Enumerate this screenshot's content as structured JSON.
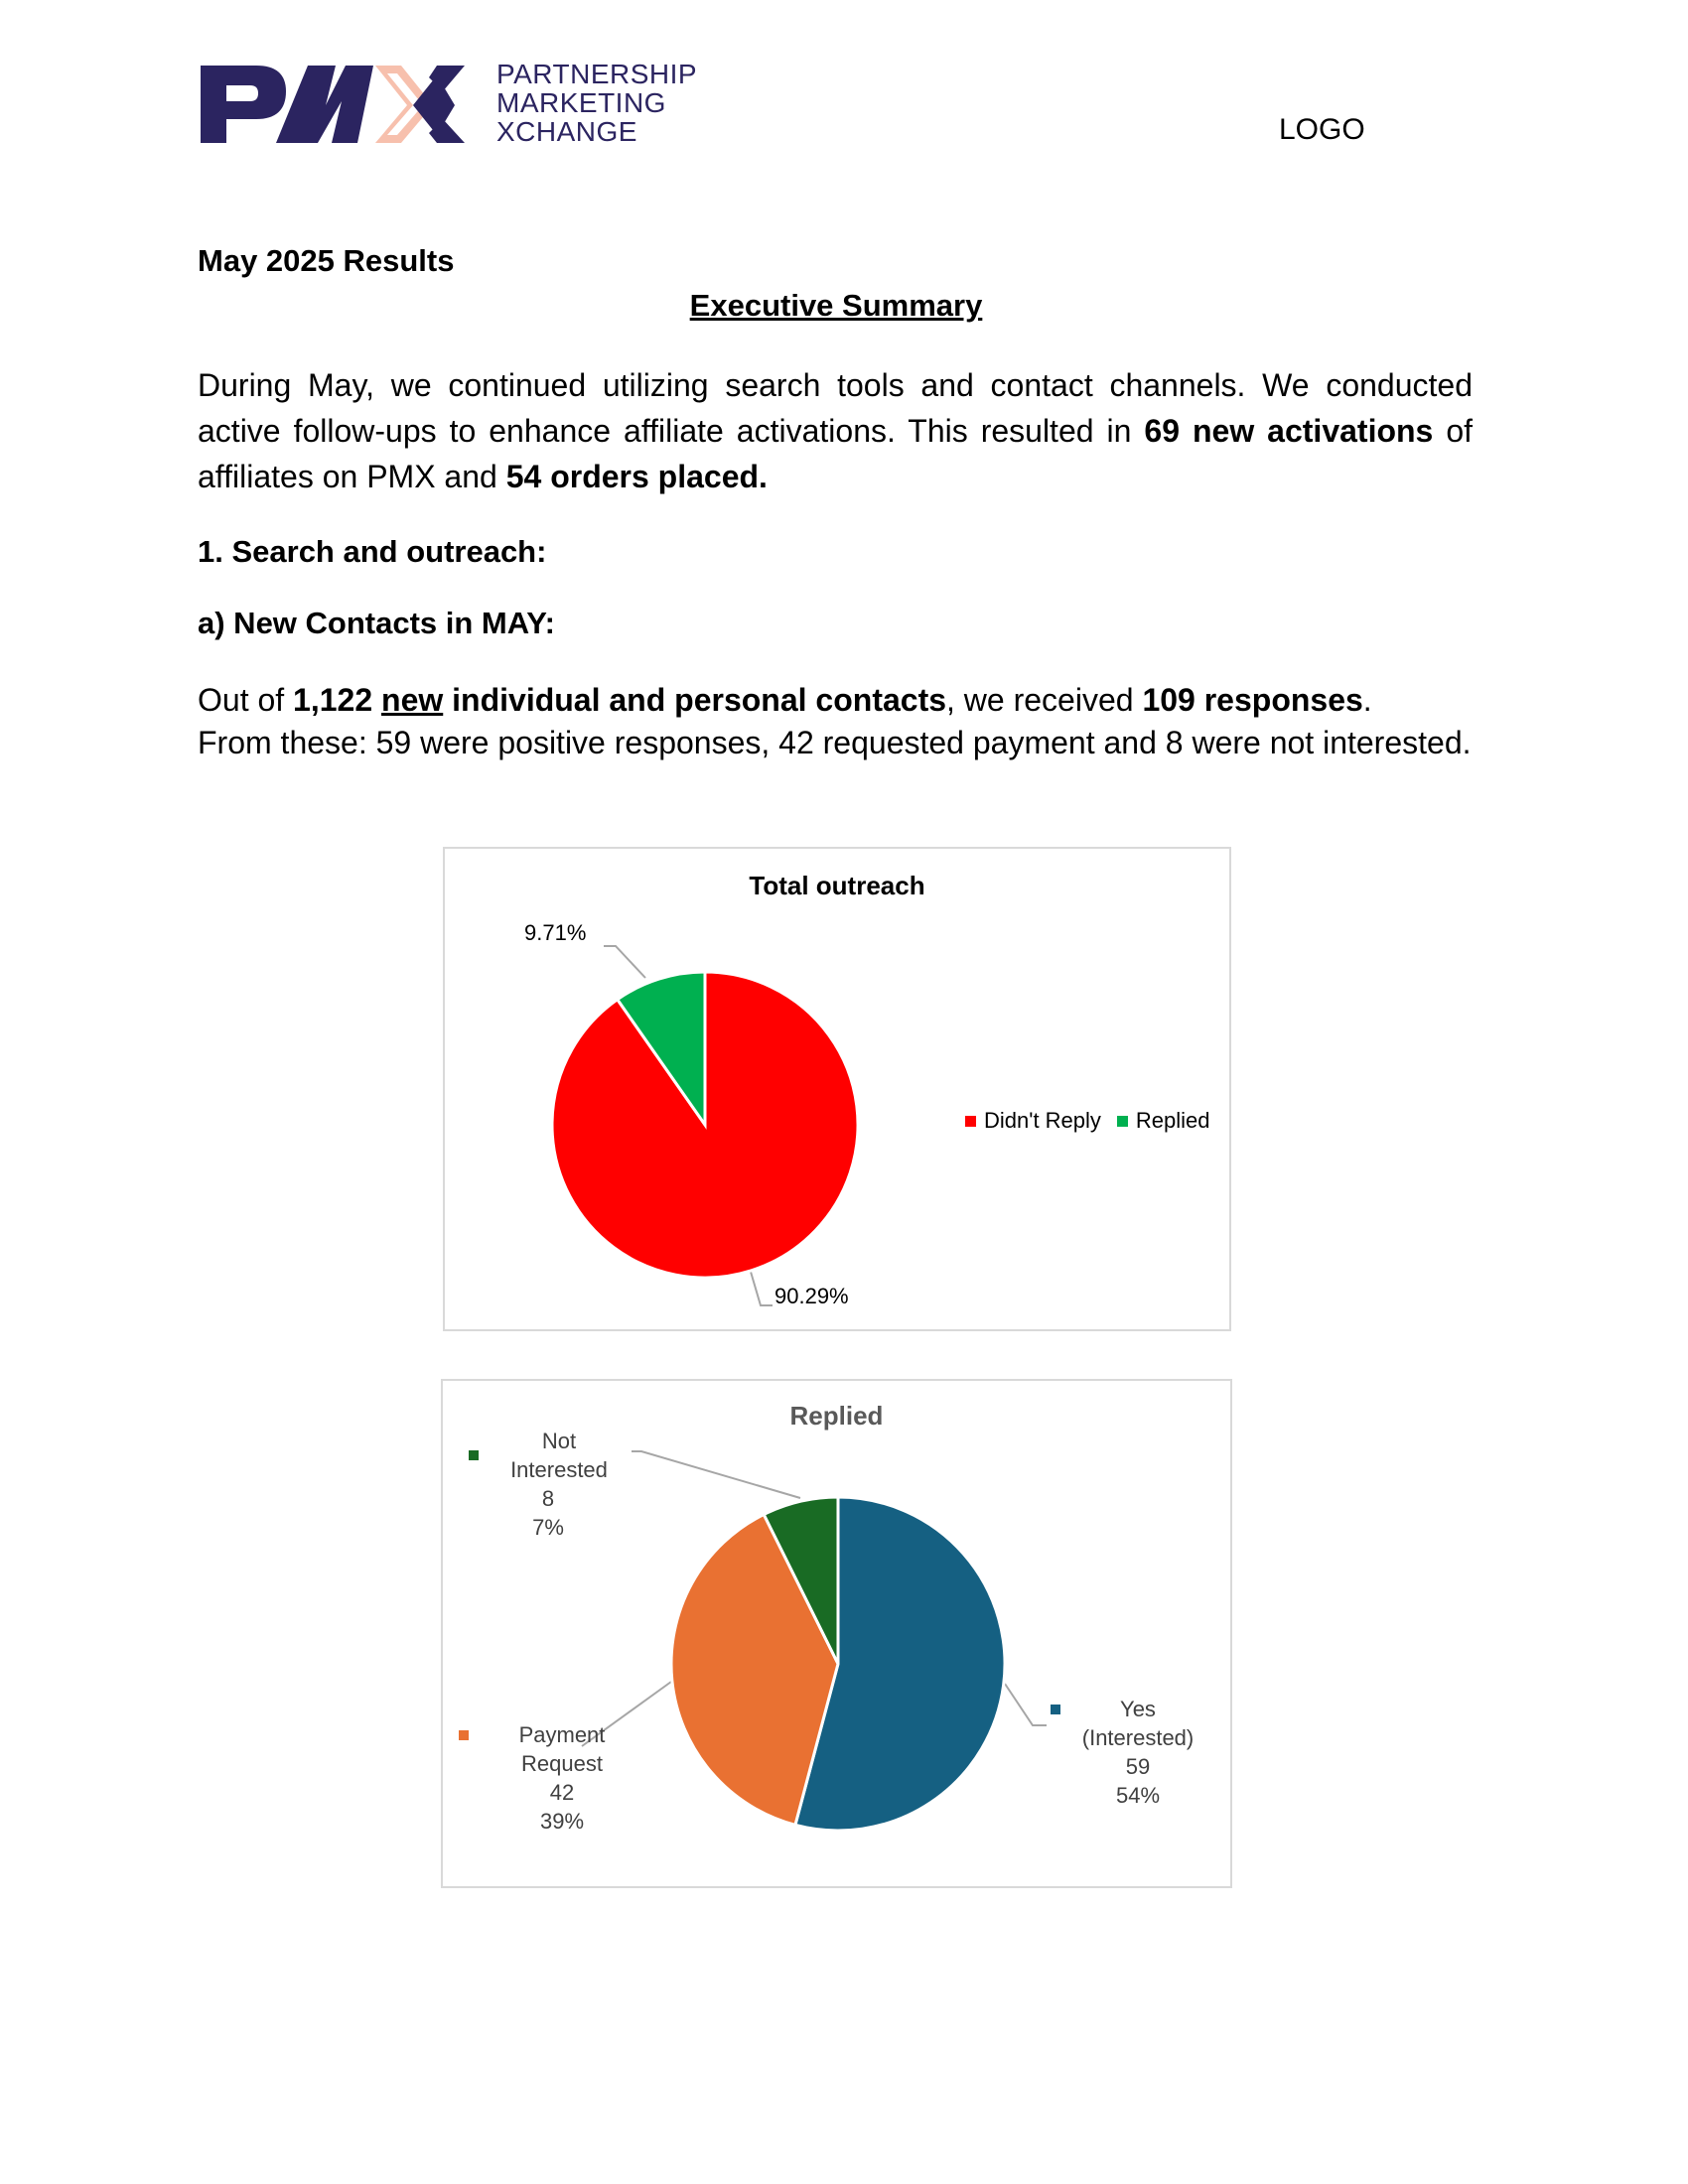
{
  "header": {
    "brand_mark": "PMX",
    "brand_lines": [
      "PARTNERSHIP",
      "MARKETING",
      "XCHANGE"
    ],
    "logo_placeholder": "LOGO",
    "colors": {
      "brand_navy": "#2b2460",
      "brand_peach": "#f7c0ad"
    }
  },
  "document": {
    "results_heading": "May 2025 Results",
    "exec_heading": "Executive Summary",
    "intro": {
      "t1": "During May, we continued utilizing search tools and contact channels. We conducted active follow-ups to enhance affiliate activations. This resulted in ",
      "b1": "69 new activations",
      "t2": " of affiliates on PMX and ",
      "b2": "54 orders placed."
    },
    "section1_heading": "1. Search and outreach:",
    "section1a_heading": "a) New Contacts in MAY:",
    "contacts": {
      "t1": "Out of ",
      "b1": "1,122 ",
      "u1": "new",
      "b2": " individual and personal contacts",
      "t2": ", we received ",
      "b3": "109 responses",
      "t3": ".",
      "t4": "From these: 59 were positive responses, 42 requested payment and 8 were not interested."
    }
  },
  "chart_data": [
    {
      "type": "pie",
      "title": "Total outreach",
      "legend_position": "right",
      "slices": [
        {
          "name": "Didn't Reply",
          "value": 90.29,
          "label": "90.29%",
          "color": "#ff0000"
        },
        {
          "name": "Replied",
          "value": 9.71,
          "label": "9.71%",
          "color": "#00b050"
        }
      ]
    },
    {
      "type": "pie",
      "title": "Replied",
      "legend_position": "labels",
      "slices": [
        {
          "name": "Yes (Interested)",
          "name_lines": [
            "Yes",
            "(Interested)"
          ],
          "value": 59,
          "percent": "54%",
          "color": "#156082"
        },
        {
          "name": "Payment Request",
          "name_lines": [
            "Payment",
            "Request"
          ],
          "value": 42,
          "percent": "39%",
          "color": "#e97132"
        },
        {
          "name": "Not Interested",
          "name_lines": [
            "Not Interested"
          ],
          "value": 8,
          "percent": "7%",
          "color": "#196b24"
        }
      ]
    }
  ]
}
